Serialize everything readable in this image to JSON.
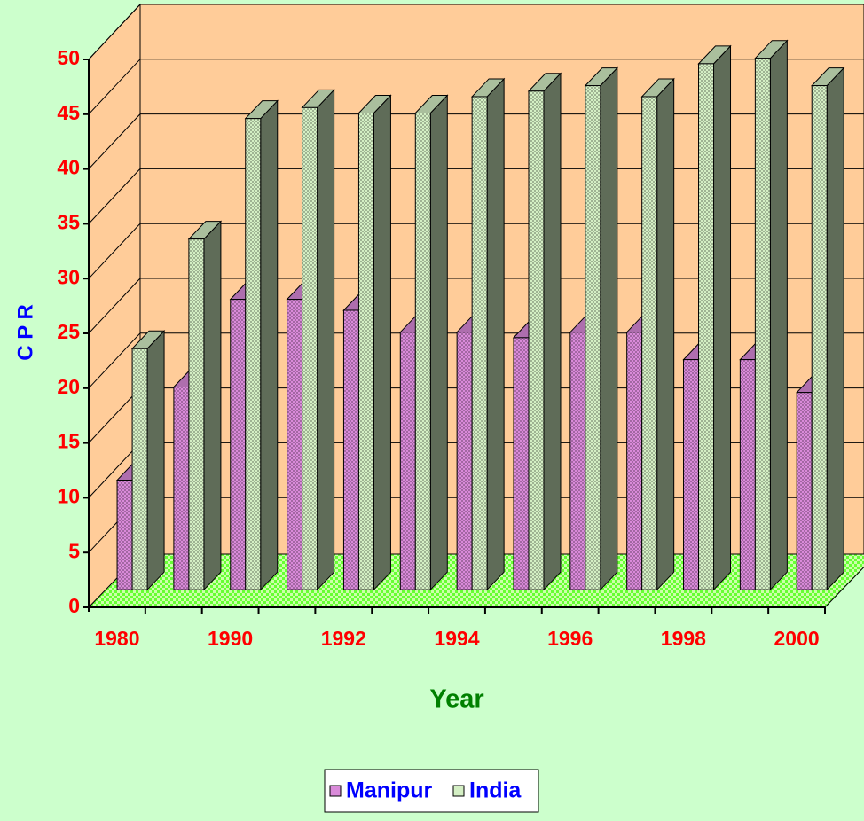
{
  "chart_data": {
    "type": "bar3d",
    "xlabel": "Year",
    "ylabel": "C P R",
    "categories": [
      "1980",
      null,
      "1990",
      null,
      "1992",
      null,
      "1994",
      null,
      "1996",
      null,
      "1998",
      null,
      "2000"
    ],
    "series": [
      {
        "name": "Manipur",
        "color": "#d98ad9",
        "values": [
          10,
          18.5,
          26.5,
          26.5,
          25.5,
          23.5,
          23.5,
          23,
          23.5,
          23.5,
          21,
          21,
          18
        ]
      },
      {
        "name": "India",
        "color": "#d4efc4",
        "values": [
          22,
          32,
          43,
          44,
          43.5,
          43.5,
          45,
          45.5,
          46,
          45,
          48,
          48.5,
          46
        ]
      }
    ],
    "ylim": [
      0,
      50
    ],
    "yticks": [
      0,
      5,
      10,
      15,
      20,
      25,
      30,
      35,
      40,
      45,
      50
    ],
    "grid": true,
    "legend": "bottom"
  }
}
